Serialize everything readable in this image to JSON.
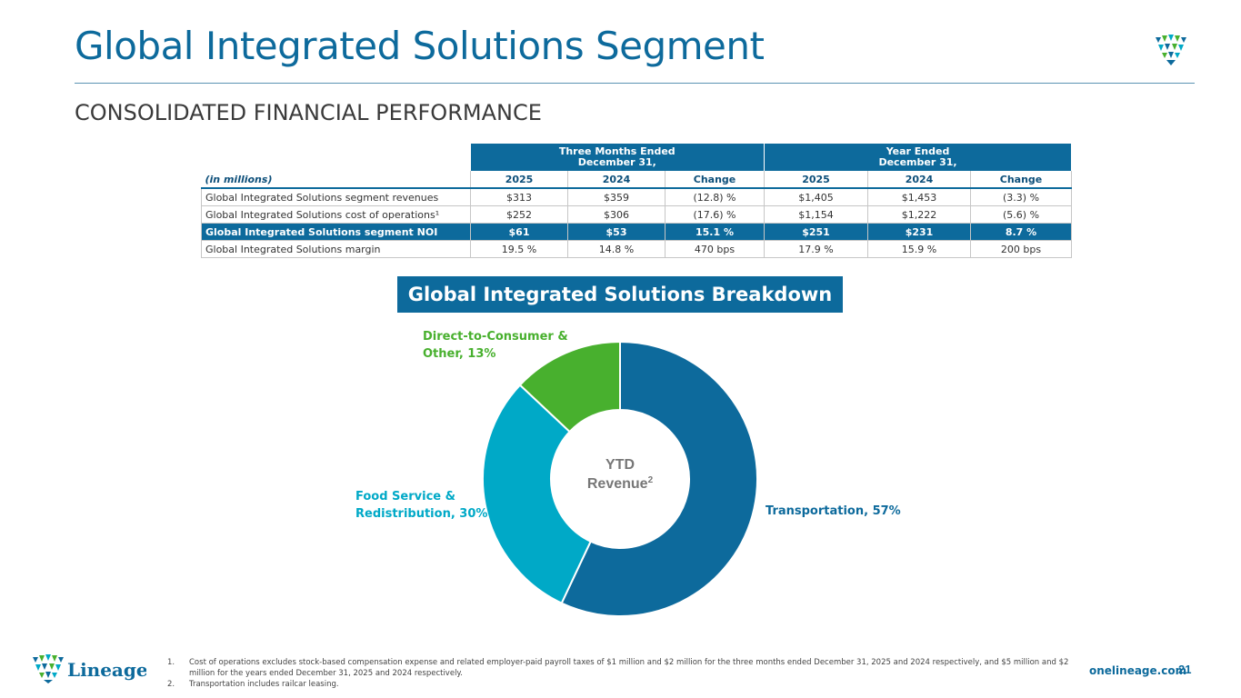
{
  "header": {
    "title": "Global Integrated Solutions Segment",
    "subtitle": "CONSOLIDATED FINANCIAL PERFORMANCE"
  },
  "table": {
    "group_headers": [
      "Three Months Ended December 31,",
      "Year Ended December 31,"
    ],
    "group_header_lines": [
      [
        "Three Months Ended",
        "December 31,"
      ],
      [
        "Year Ended",
        "December 31,"
      ]
    ],
    "columns": [
      "(in millions)",
      "2025",
      "2024",
      "Change",
      "2025",
      "2024",
      "Change"
    ],
    "rows": [
      {
        "label": "Global Integrated Solutions segment revenues",
        "values": [
          "$313",
          "$359",
          "(12.8) %",
          "$1,405",
          "$1,453",
          "(3.3) %"
        ],
        "highlight": false
      },
      {
        "label": "Global Integrated Solutions cost of operations¹",
        "values": [
          "$252",
          "$306",
          "(17.6) %",
          "$1,154",
          "$1,222",
          "(5.6) %"
        ],
        "highlight": false
      },
      {
        "label": "Global Integrated Solutions segment NOI",
        "values": [
          "$61",
          "$53",
          "15.1 %",
          "$251",
          "$231",
          "8.7 %"
        ],
        "highlight": true
      },
      {
        "label": "Global Integrated Solutions margin",
        "values": [
          "19.5 %",
          "14.8 %",
          "470 bps",
          "17.9 %",
          "15.9 %",
          "200 bps"
        ],
        "highlight": false
      }
    ]
  },
  "breakdown": {
    "title": "Global Integrated Solutions Breakdown"
  },
  "chart_data": {
    "type": "pie",
    "title": "Global Integrated Solutions Breakdown",
    "center_label": "YTD",
    "center_label_2": "Revenue",
    "center_label_sup": "2",
    "categories": [
      "Transportation",
      "Food Service & Redistribution",
      "Direct-to-Consumer & Other"
    ],
    "values": [
      57,
      30,
      13
    ],
    "colors": [
      "#0d6a9c",
      "#00a9c7",
      "#48b02e"
    ],
    "data_labels": {
      "transportation": "Transportation, 57%",
      "food_service_line1": "Food Service &",
      "food_service_line2": "Redistribution, 30%",
      "dtc_line1": "Direct-to-Consumer &",
      "dtc_line2": "Other, 13%"
    }
  },
  "footer": {
    "notes": [
      {
        "num": "1.",
        "text": "Cost of operations excludes stock-based compensation expense and related employer-paid payroll taxes of $1 million and $2 million for the three months ended December 31, 2025 and 2024 respectively, and $5 million and $2 million for the years ended December 31, 2025 and 2024 respectively."
      },
      {
        "num": "2.",
        "text": "Transportation includes railcar leasing."
      }
    ],
    "brand": "Lineage",
    "website": "onelineage.com",
    "page_number": "21"
  },
  "colors": {
    "brand_blue": "#0d6a9c",
    "teal": "#00a9c7",
    "green": "#48b02e"
  }
}
